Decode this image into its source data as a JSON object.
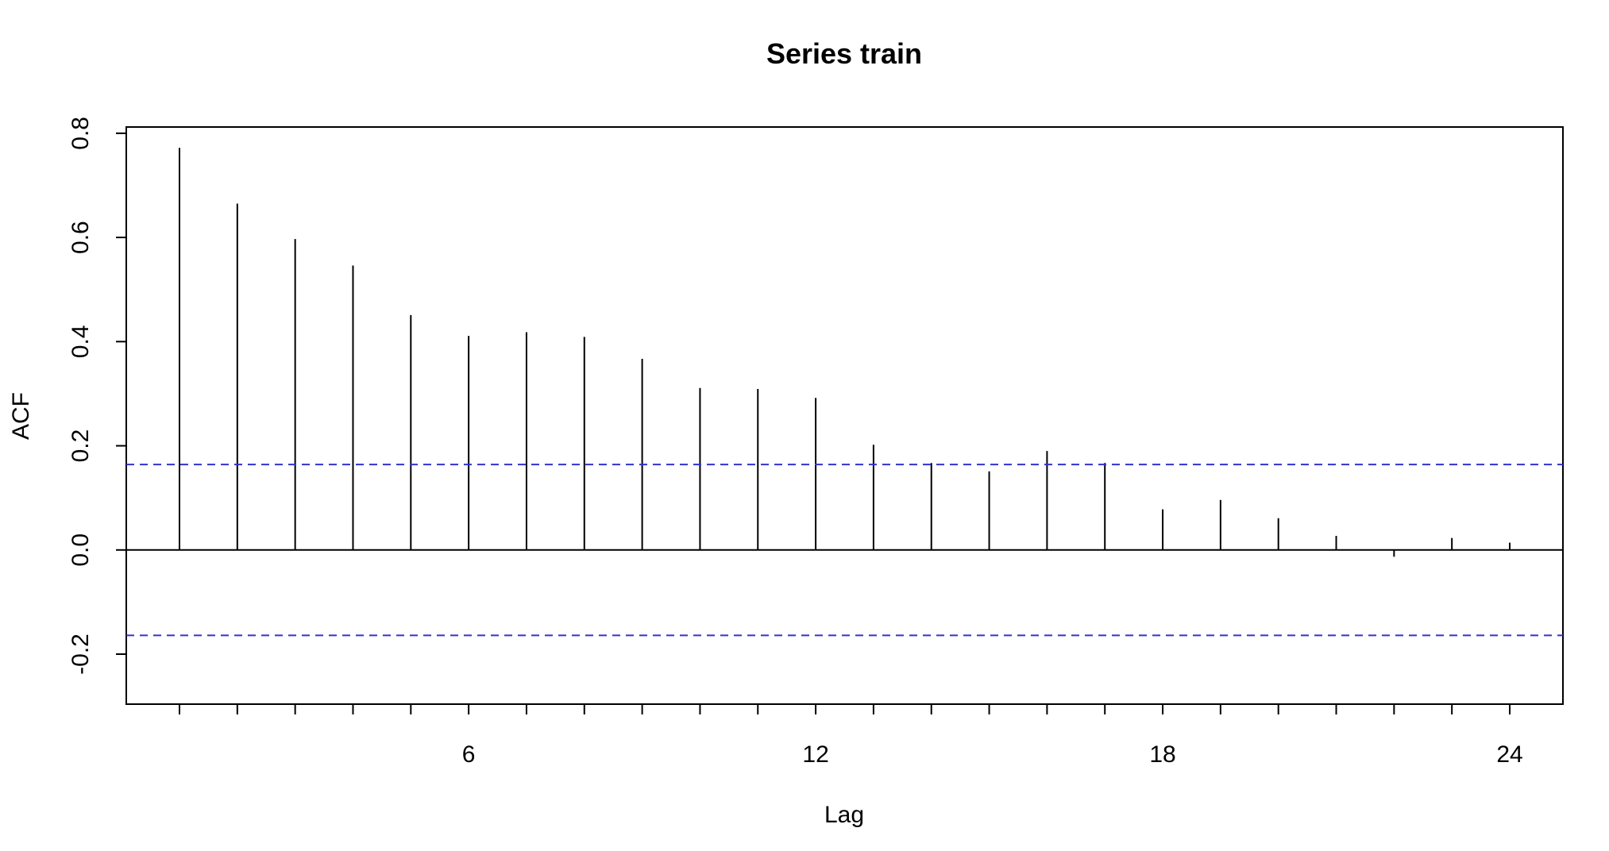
{
  "chart_data": {
    "type": "bar",
    "title": "Series  train",
    "xlabel": "Lag",
    "ylabel": "ACF",
    "lags": [
      1,
      2,
      3,
      4,
      5,
      6,
      7,
      8,
      9,
      10,
      11,
      12,
      13,
      14,
      15,
      16,
      17,
      18,
      19,
      20,
      21,
      22,
      23,
      24
    ],
    "values": [
      0.772,
      0.665,
      0.597,
      0.546,
      0.451,
      0.411,
      0.418,
      0.409,
      0.367,
      0.311,
      0.309,
      0.292,
      0.202,
      0.167,
      0.151,
      0.19,
      0.167,
      0.078,
      0.096,
      0.061,
      0.027,
      -0.013,
      0.023,
      0.014
    ],
    "confidence_bound": 0.164,
    "confidence_line_color": "#3333cc",
    "xlim": [
      0.08,
      24.92
    ],
    "ylim": [
      -0.296,
      0.812
    ],
    "x_ticks": [
      1,
      2,
      3,
      4,
      5,
      6,
      7,
      8,
      9,
      10,
      11,
      12,
      13,
      14,
      15,
      16,
      17,
      18,
      19,
      20,
      21,
      22,
      23,
      24
    ],
    "x_tick_labels": [
      {
        "value": 6,
        "label": "6"
      },
      {
        "value": 12,
        "label": "12"
      },
      {
        "value": 18,
        "label": "18"
      },
      {
        "value": 24,
        "label": "24"
      }
    ],
    "y_ticks": [
      {
        "value": -0.2,
        "label": "-0.2"
      },
      {
        "value": 0.0,
        "label": "0.0"
      },
      {
        "value": 0.2,
        "label": "0.2"
      },
      {
        "value": 0.4,
        "label": "0.4"
      },
      {
        "value": 0.6,
        "label": "0.6"
      },
      {
        "value": 0.8,
        "label": "0.8"
      }
    ],
    "grid": false,
    "legend": "none"
  }
}
